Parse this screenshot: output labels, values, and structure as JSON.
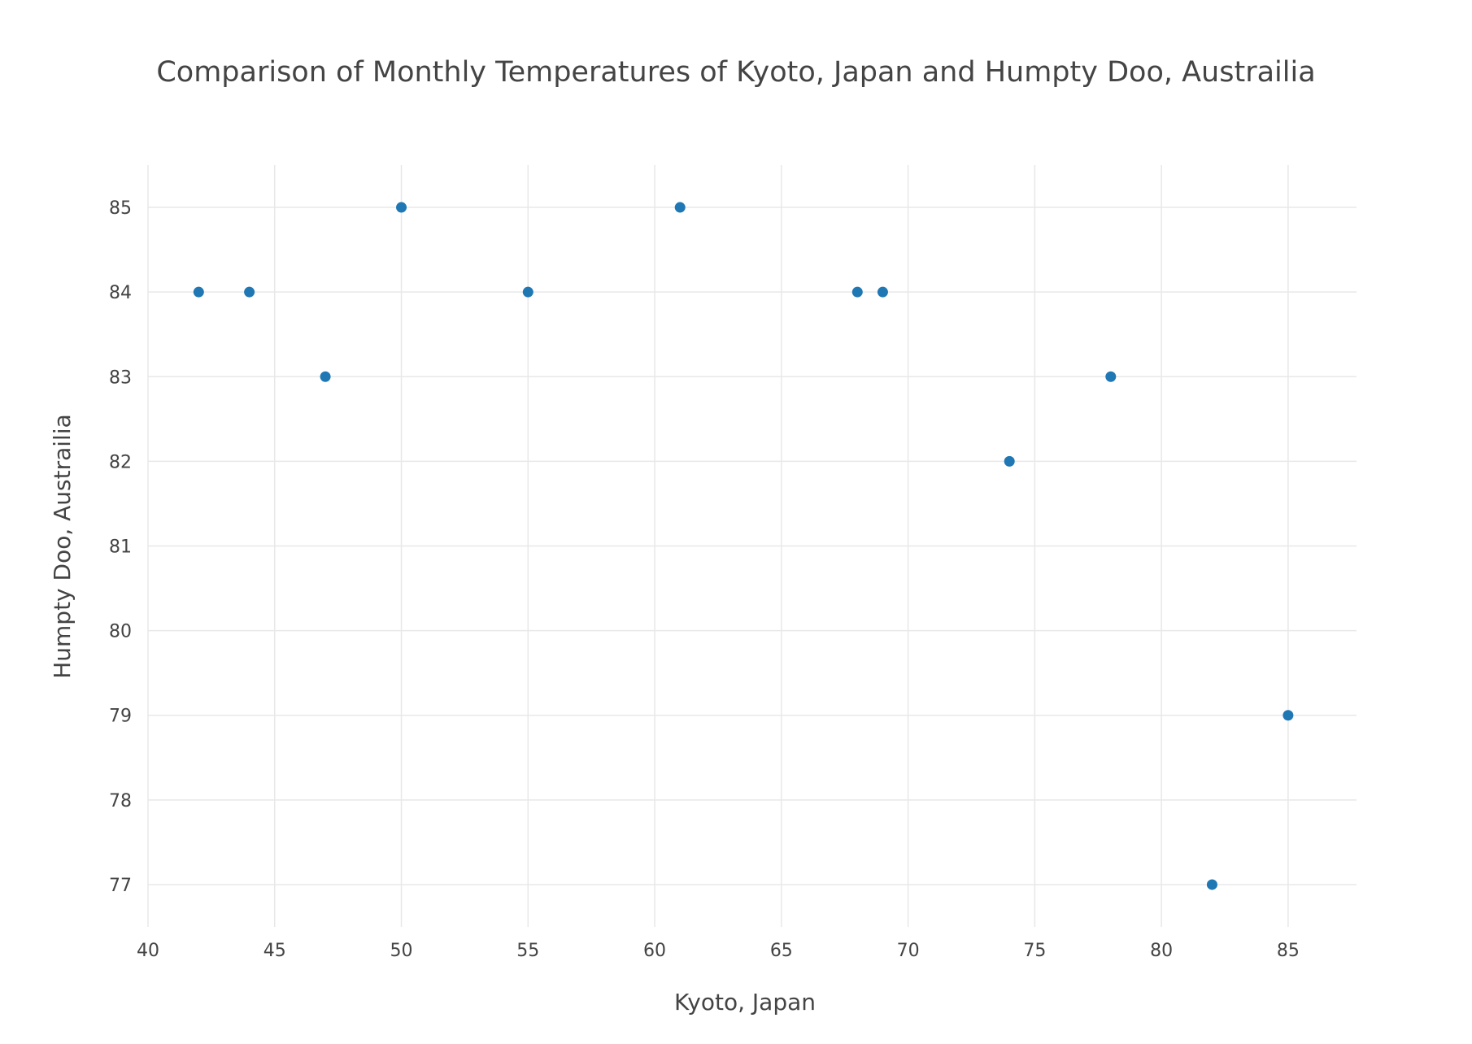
{
  "chart_data": {
    "type": "scatter",
    "title": "Comparison of Monthly Temperatures of Kyoto, Japan and Humpty Doo, Austrailia",
    "xlabel": "Kyoto, Japan",
    "ylabel": "Humpty Doo, Austrailia",
    "xlim": [
      40,
      87.7
    ],
    "ylim": [
      76.5,
      85.5
    ],
    "xticks": [
      40,
      45,
      50,
      55,
      60,
      65,
      70,
      75,
      80,
      85
    ],
    "yticks": [
      77,
      78,
      79,
      80,
      81,
      82,
      83,
      84,
      85
    ],
    "grid": true,
    "marker_color": "#1f77b4",
    "points": [
      {
        "x": 42,
        "y": 84
      },
      {
        "x": 44,
        "y": 84
      },
      {
        "x": 47,
        "y": 83
      },
      {
        "x": 50,
        "y": 85
      },
      {
        "x": 55,
        "y": 84
      },
      {
        "x": 61,
        "y": 85
      },
      {
        "x": 68,
        "y": 84
      },
      {
        "x": 69,
        "y": 84
      },
      {
        "x": 74,
        "y": 82
      },
      {
        "x": 78,
        "y": 83
      },
      {
        "x": 82,
        "y": 77
      },
      {
        "x": 85,
        "y": 79
      }
    ]
  }
}
